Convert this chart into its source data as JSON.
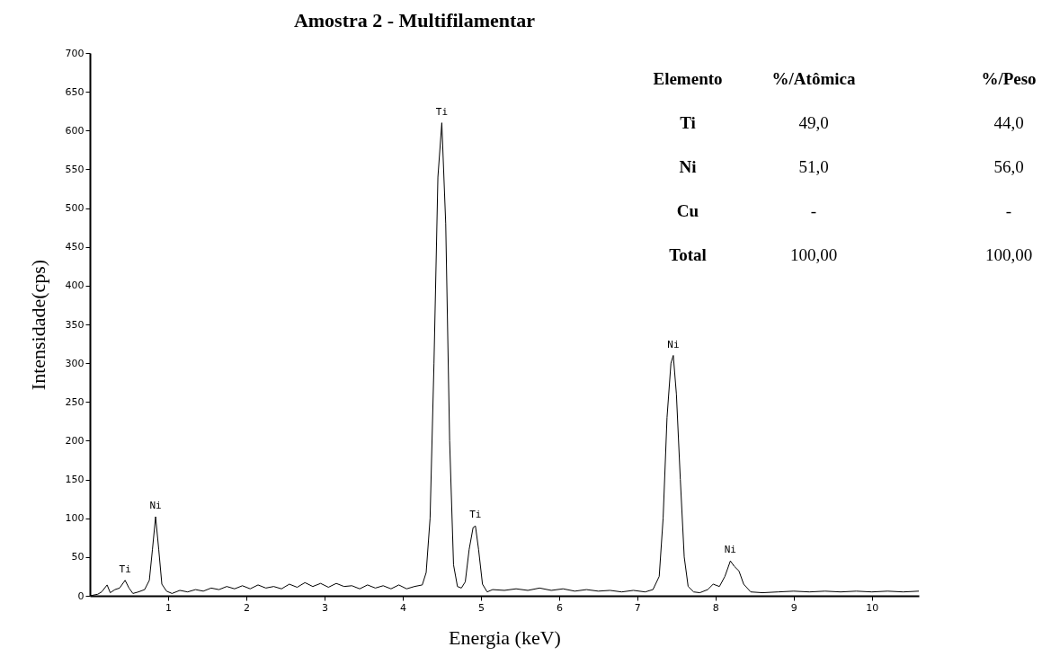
{
  "chart_data": {
    "type": "line",
    "title": "Amostra 2 - Multifilamentar",
    "xlabel": "Energia (keV)",
    "ylabel": "Intensidade(cps)",
    "xlim": [
      0,
      10.6
    ],
    "xticks": [
      1,
      2,
      3,
      4,
      5,
      6,
      7,
      8,
      9,
      10
    ],
    "ylim": [
      0,
      700
    ],
    "yticks": [
      0,
      50,
      100,
      150,
      200,
      250,
      300,
      350,
      400,
      450,
      500,
      550,
      600,
      650,
      700
    ],
    "grid": false,
    "marker": "none",
    "line_style": "solid",
    "x": [
      0.0,
      0.1,
      0.15,
      0.22,
      0.26,
      0.32,
      0.38,
      0.45,
      0.5,
      0.55,
      0.62,
      0.7,
      0.76,
      0.8,
      0.84,
      0.88,
      0.92,
      0.98,
      1.05,
      1.15,
      1.25,
      1.35,
      1.45,
      1.55,
      1.65,
      1.75,
      1.85,
      1.95,
      2.05,
      2.15,
      2.25,
      2.35,
      2.45,
      2.55,
      2.65,
      2.75,
      2.85,
      2.95,
      3.05,
      3.15,
      3.25,
      3.35,
      3.45,
      3.55,
      3.65,
      3.75,
      3.85,
      3.95,
      4.05,
      4.15,
      4.25,
      4.3,
      4.35,
      4.4,
      4.45,
      4.5,
      4.55,
      4.6,
      4.65,
      4.7,
      4.75,
      4.8,
      4.85,
      4.9,
      4.93,
      4.97,
      5.02,
      5.08,
      5.15,
      5.3,
      5.45,
      5.6,
      5.75,
      5.9,
      6.05,
      6.2,
      6.35,
      6.5,
      6.65,
      6.8,
      6.95,
      7.1,
      7.2,
      7.28,
      7.33,
      7.38,
      7.43,
      7.46,
      7.5,
      7.55,
      7.6,
      7.65,
      7.72,
      7.8,
      7.9,
      7.97,
      8.05,
      8.12,
      8.19,
      8.24,
      8.3,
      8.36,
      8.45,
      8.6,
      8.8,
      9.0,
      9.2,
      9.4,
      9.6,
      9.8,
      10.0,
      10.2,
      10.4,
      10.6
    ],
    "series": [
      {
        "color": "#000000",
        "values": [
          0,
          2,
          5,
          14,
          4,
          8,
          10,
          20,
          10,
          3,
          5,
          8,
          20,
          60,
          102,
          60,
          15,
          6,
          3,
          7,
          5,
          8,
          6,
          10,
          8,
          12,
          9,
          13,
          9,
          14,
          10,
          12,
          9,
          15,
          11,
          17,
          12,
          16,
          11,
          16,
          12,
          13,
          9,
          14,
          10,
          13,
          9,
          14,
          9,
          12,
          14,
          30,
          100,
          300,
          540,
          610,
          480,
          200,
          40,
          12,
          10,
          18,
          60,
          88,
          90,
          60,
          15,
          5,
          8,
          7,
          9,
          7,
          10,
          7,
          9,
          6,
          8,
          6,
          7,
          5,
          7,
          5,
          8,
          25,
          100,
          230,
          300,
          310,
          260,
          150,
          50,
          12,
          5,
          4,
          8,
          15,
          12,
          25,
          45,
          38,
          32,
          15,
          5,
          4,
          5,
          6,
          5,
          6,
          5,
          6,
          5,
          6,
          5,
          6
        ]
      }
    ],
    "annotations": [
      {
        "text": "Ti",
        "x": 0.45,
        "y": 20
      },
      {
        "text": "Ni",
        "x": 0.84,
        "y": 102
      },
      {
        "text": "Ti",
        "x": 4.5,
        "y": 610
      },
      {
        "text": "Ti",
        "x": 4.93,
        "y": 90
      },
      {
        "text": "Ni",
        "x": 7.46,
        "y": 310
      },
      {
        "text": "Ni",
        "x": 8.19,
        "y": 45
      },
      "Elemento",
      "%/Atômica",
      "%/Peso",
      "Ti",
      "49,0",
      "44,0",
      "Ni",
      "51,0",
      "56,0",
      "Cu",
      "-",
      "-",
      "Total",
      "100,00",
      "100,00"
    ]
  }
}
